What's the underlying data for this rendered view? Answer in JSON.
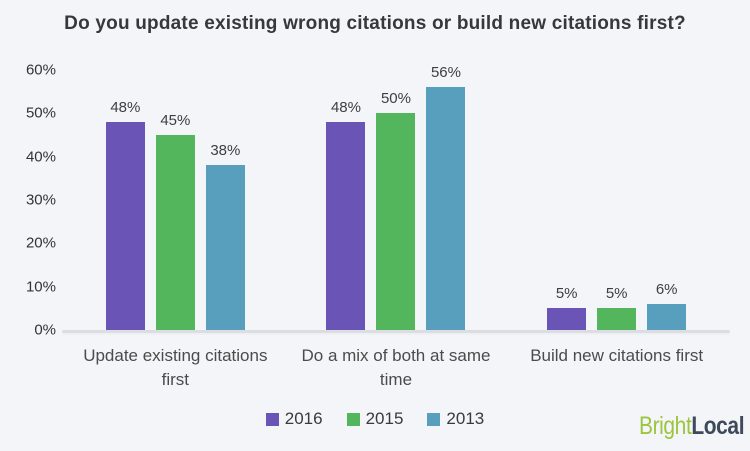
{
  "chart_data": {
    "type": "bar",
    "title": "Do you update existing wrong citations or build new citations first?",
    "categories": [
      "Update existing citations first",
      "Do a mix of both at same time",
      "Build new citations first"
    ],
    "series": [
      {
        "name": "2016",
        "color": "#6a54b6",
        "values": [
          48,
          48,
          5
        ]
      },
      {
        "name": "2015",
        "color": "#54b65c",
        "values": [
          45,
          50,
          5
        ]
      },
      {
        "name": "2013",
        "color": "#589fbe",
        "values": [
          38,
          56,
          6
        ]
      }
    ],
    "value_label_suffix": "%",
    "xlabel": "",
    "ylabel": "",
    "ylim": [
      0,
      60
    ],
    "yticks": [
      "0%",
      "10%",
      "20%",
      "30%",
      "40%",
      "50%",
      "60%"
    ],
    "grid": false,
    "legend_position": "bottom-center"
  },
  "branding": {
    "brand_first": "Bright",
    "brand_second": "Local",
    "brand_first_color": "#9bc53d",
    "brand_second_color": "#3e4a5a"
  },
  "colors": {
    "background": "#f4f5f9",
    "axis_line": "#dcdce3",
    "title_text": "#383838",
    "tick_text": "#333333",
    "value_text": "#3e3e3e",
    "category_text": "#4b4b4b"
  }
}
